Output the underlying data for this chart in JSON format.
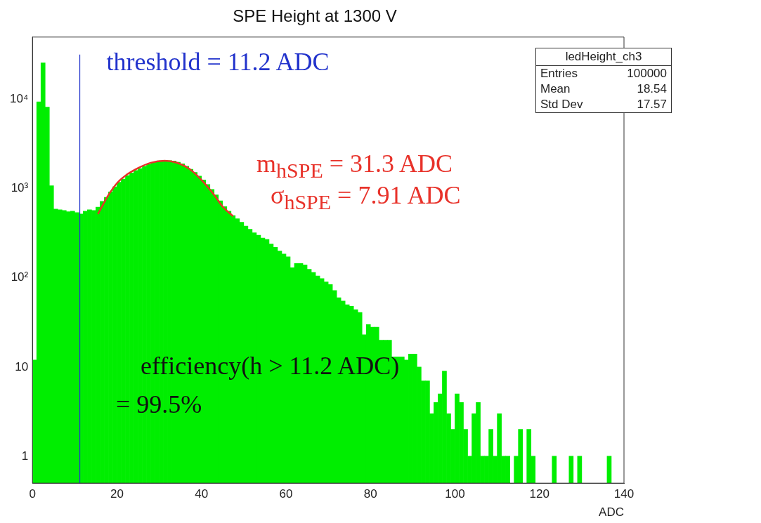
{
  "chart_data": {
    "type": "histogram",
    "title": "SPE Height at 1300 V",
    "xlabel": "ADC",
    "bins": [
      0,
      1,
      2,
      3,
      4,
      5,
      6,
      7,
      8,
      9,
      10,
      11,
      12,
      13,
      14,
      15,
      16,
      17,
      18,
      19,
      20,
      21,
      22,
      23,
      24,
      25,
      26,
      27,
      28,
      29,
      30,
      31,
      32,
      33,
      34,
      35,
      36,
      37,
      38,
      39,
      40,
      41,
      42,
      43,
      44,
      45,
      46,
      47,
      48,
      49,
      50,
      51,
      52,
      53,
      54,
      55,
      56,
      57,
      58,
      59,
      60,
      61,
      62,
      63,
      64,
      65,
      66,
      67,
      68,
      69,
      70,
      71,
      72,
      73,
      74,
      75,
      76,
      77,
      78,
      79,
      80,
      81,
      82,
      83,
      84,
      85,
      86,
      87,
      88,
      89,
      90,
      91,
      92,
      93,
      94,
      95,
      96,
      97,
      98,
      99,
      100,
      101,
      102,
      103,
      104,
      105,
      106,
      107,
      108,
      109,
      110,
      111,
      112,
      113,
      114,
      115,
      116,
      117,
      118,
      119,
      120,
      121,
      122,
      123,
      124,
      125,
      126,
      127,
      128,
      129,
      130,
      131,
      132,
      133,
      134,
      135,
      136,
      137,
      138,
      139,
      140
    ],
    "series": [
      {
        "type": "histogram",
        "color": "#00ee00",
        "values": [
          12,
          9400,
          25700,
          8200,
          1080,
          590,
          580,
          570,
          550,
          560,
          540,
          520,
          560,
          580,
          570,
          620,
          720,
          800,
          920,
          1050,
          1180,
          1280,
          1400,
          1500,
          1600,
          1680,
          1780,
          1870,
          1950,
          2000,
          2050,
          2060,
          2060,
          2040,
          1980,
          1900,
          1780,
          1650,
          1520,
          1380,
          1250,
          1110,
          980,
          850,
          730,
          630,
          560,
          500,
          460,
          420,
          380,
          350,
          320,
          300,
          280,
          270,
          240,
          220,
          200,
          185,
          172,
          130,
          145,
          145,
          140,
          125,
          115,
          105,
          98,
          90,
          84,
          72,
          60,
          55,
          50,
          48,
          44,
          41,
          23,
          30,
          28,
          28,
          20,
          20,
          20,
          13,
          13,
          13,
          12,
          14,
          14,
          10,
          7,
          7,
          3,
          4,
          5,
          9,
          3,
          2,
          5,
          4,
          2,
          1,
          3,
          4,
          1,
          1,
          2,
          1,
          3,
          1,
          1,
          null,
          1,
          2,
          null,
          2,
          1,
          null,
          null,
          null,
          null,
          1,
          null,
          null,
          null,
          1,
          null,
          1,
          null,
          null,
          null,
          null,
          null,
          null,
          1,
          null,
          null,
          null
        ]
      },
      {
        "type": "line",
        "color": "#e8322a",
        "x": [
          15.5,
          18,
          20,
          22,
          25,
          28,
          31.3,
          34,
          37,
          40,
          43,
          45,
          47.5
        ],
        "values": [
          520,
          850,
          1150,
          1400,
          1700,
          1950,
          2050,
          1960,
          1680,
          1250,
          850,
          630,
          490
        ]
      }
    ],
    "xlim": [
      0,
      140
    ],
    "xticks": [
      0,
      20,
      40,
      60,
      80,
      100,
      120,
      140
    ],
    "ylim": [
      0.5,
      50000
    ],
    "yticks": [
      1,
      10,
      {
        "value": 100,
        "label": "10²"
      },
      {
        "value": 1000,
        "label": "10³"
      },
      {
        "value": 10000,
        "label": "10⁴"
      }
    ],
    "log": "y",
    "grid": false,
    "legend": false,
    "ref_lines": [
      {
        "axis": "x",
        "value": 11.2,
        "label": "threshold = 11.2 ADC",
        "color": "#2233cc"
      }
    ],
    "annotations": [
      "ledHeight_ch3",
      "Entries",
      "100000",
      "Mean",
      "18.54",
      "Std Dev",
      "17.57",
      "m$_{hSPE}$ = 31.3 ADC",
      "σ$_{hSPE}$ = 7.91 ADC",
      "efficiency(h > 11.2 ADC)",
      "= 99.5%"
    ]
  }
}
